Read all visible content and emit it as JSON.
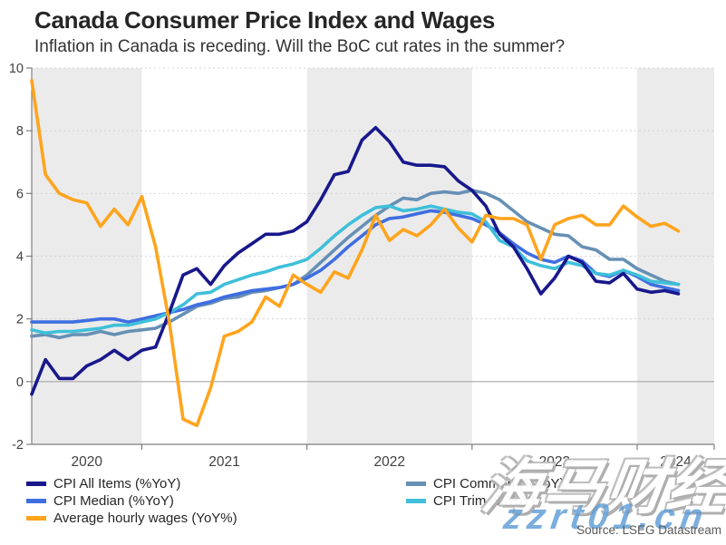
{
  "header": {
    "title": "Canada Consumer Price Index and Wages",
    "subtitle": "Inflation in Canada is receding. Will the BoC cut rates in the summer?"
  },
  "source_note": "Source: LSEG Datastream",
  "watermark": {
    "cjk_text": "海马财经",
    "url_text": "zzrt01.cn",
    "url_color": "#5B9BD5"
  },
  "chart_data": {
    "type": "line",
    "title": "Canada Consumer Price Index and Wages",
    "x_axis": {
      "unit": "month",
      "start_month": "May 2020",
      "end_month": "Apr 2024",
      "points": 48,
      "year_labels": [
        "2020",
        "2021",
        "2022",
        "2023",
        "2024"
      ],
      "year_tick_indices": [
        8,
        20,
        32,
        44
      ]
    },
    "y_axis": {
      "min": -2,
      "max": 10,
      "step": 2,
      "tick_values": [
        10,
        8,
        6,
        4,
        2,
        0,
        -2
      ],
      "tick_labels": [
        "10",
        "8",
        "6",
        "4",
        "2",
        "0",
        "-2"
      ],
      "dotted_grid_values": [
        10,
        8,
        6,
        4,
        2
      ],
      "zero_line": true
    },
    "plot_style": {
      "band_color": "#EBEBEB",
      "grid_color": "#D4D4D4",
      "zero_line_color": "#A8A8A8",
      "axis_color": "#7F7F7F",
      "label_color": "#404040",
      "line_width": 3.6
    },
    "draw_order": [
      3,
      1,
      4,
      0,
      2
    ],
    "series": [
      {
        "name": "CPI All Items (%YoY)",
        "color": "#18188C",
        "values": [
          -0.4,
          0.7,
          0.1,
          0.1,
          0.5,
          0.7,
          1.0,
          0.7,
          1.0,
          1.1,
          2.2,
          3.4,
          3.6,
          3.1,
          3.7,
          4.1,
          4.4,
          4.7,
          4.7,
          4.8,
          5.1,
          5.8,
          6.6,
          6.7,
          7.7,
          8.1,
          7.65,
          7.0,
          6.9,
          6.9,
          6.85,
          6.4,
          6.1,
          5.6,
          4.7,
          4.3,
          3.6,
          2.8,
          3.3,
          4.0,
          3.8,
          3.2,
          3.15,
          3.45,
          2.95,
          2.85,
          2.9,
          2.8
        ]
      },
      {
        "name": "CPI Median (%YoY)",
        "color": "#3F6EE0",
        "values": [
          1.9,
          1.9,
          1.9,
          1.9,
          1.95,
          2.0,
          2.0,
          1.9,
          2.0,
          2.1,
          2.2,
          2.3,
          2.45,
          2.55,
          2.7,
          2.8,
          2.9,
          2.95,
          3.0,
          3.1,
          3.3,
          3.55,
          3.9,
          4.3,
          4.65,
          5.0,
          5.2,
          5.25,
          5.35,
          5.45,
          5.4,
          5.3,
          5.2,
          5.0,
          4.75,
          4.4,
          4.1,
          3.9,
          3.8,
          4.0,
          3.85,
          3.45,
          3.35,
          3.55,
          3.35,
          3.1,
          3.0,
          2.9
        ]
      },
      {
        "name": "Average hourly wages (YoY%)",
        "color": "#FFA41D",
        "values": [
          9.6,
          6.6,
          6.0,
          5.8,
          5.7,
          4.95,
          5.5,
          5.0,
          5.9,
          4.3,
          1.9,
          -1.2,
          -1.4,
          -0.2,
          1.45,
          1.6,
          1.9,
          2.7,
          2.4,
          3.4,
          3.1,
          2.85,
          3.5,
          3.3,
          4.2,
          5.3,
          4.5,
          4.85,
          4.65,
          5.0,
          5.5,
          4.9,
          4.45,
          5.3,
          5.2,
          5.2,
          5.0,
          3.9,
          5.0,
          5.2,
          5.3,
          5.0,
          5.0,
          5.6,
          5.25,
          4.95,
          5.05,
          4.8
        ]
      },
      {
        "name": "CPI Common (%YoY)",
        "color": "#6690B5",
        "values": [
          1.45,
          1.5,
          1.4,
          1.5,
          1.5,
          1.6,
          1.5,
          1.6,
          1.65,
          1.7,
          1.9,
          2.15,
          2.4,
          2.5,
          2.65,
          2.7,
          2.85,
          2.9,
          3.0,
          3.1,
          3.4,
          3.8,
          4.2,
          4.6,
          4.95,
          5.3,
          5.6,
          5.85,
          5.8,
          6.0,
          6.05,
          6.0,
          6.1,
          6.0,
          5.8,
          5.45,
          5.1,
          4.9,
          4.7,
          4.65,
          4.3,
          4.2,
          3.9,
          3.9,
          3.6,
          3.4,
          3.2,
          3.1
        ]
      },
      {
        "name": "CPI Trim (%YoY)",
        "color": "#3FBFD9",
        "values": [
          1.65,
          1.55,
          1.6,
          1.6,
          1.65,
          1.7,
          1.8,
          1.8,
          1.9,
          2.0,
          2.2,
          2.45,
          2.8,
          2.85,
          3.1,
          3.25,
          3.4,
          3.5,
          3.65,
          3.75,
          3.9,
          4.25,
          4.65,
          5.0,
          5.3,
          5.55,
          5.6,
          5.45,
          5.5,
          5.6,
          5.5,
          5.4,
          5.35,
          5.1,
          4.5,
          4.3,
          3.85,
          3.7,
          3.6,
          3.8,
          3.7,
          3.45,
          3.4,
          3.55,
          3.4,
          3.2,
          3.15,
          3.1
        ]
      }
    ],
    "legend": {
      "columns": [
        [
          0,
          1,
          2
        ],
        [
          3,
          4
        ]
      ]
    }
  }
}
